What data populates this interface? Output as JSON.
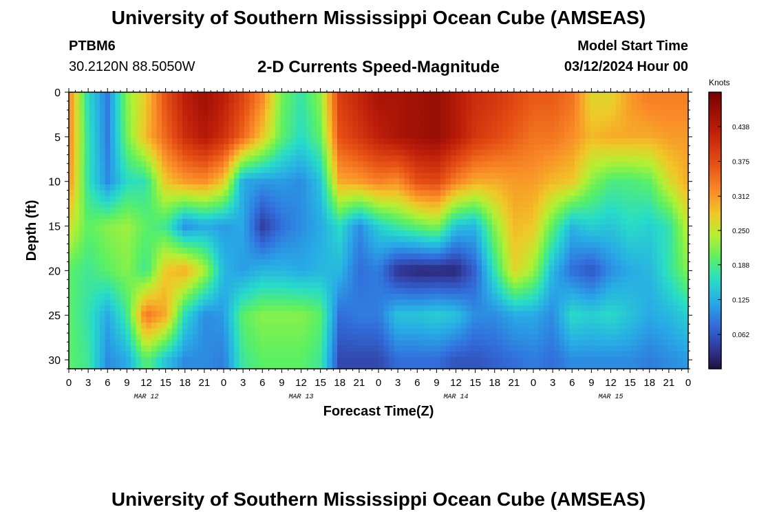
{
  "header": {
    "title": "University of Southern Mississippi Ocean Cube (AMSEAS)",
    "station_id": "PTBM6",
    "coords": "30.2120N  88.5050W",
    "chart_title": "2-D Currents Speed-Magnitude",
    "start_label": "Model Start Time",
    "start_value": "03/12/2024 Hour 00"
  },
  "footer": {
    "title": "University of Southern Mississippi Ocean Cube (AMSEAS)"
  },
  "chart_data": {
    "type": "heatmap",
    "title": "2-D Currents Speed-Magnitude",
    "xlabel": "Forecast Time(Z)",
    "ylabel": "Depth (ft)",
    "x_ticks": [
      "0",
      "3",
      "6",
      "9",
      "12",
      "15",
      "18",
      "21",
      "0",
      "3",
      "6",
      "9",
      "12",
      "15",
      "18",
      "21",
      "0",
      "3",
      "6",
      "9",
      "12",
      "15",
      "18",
      "21",
      "0",
      "3",
      "6",
      "9",
      "12",
      "15",
      "18",
      "21",
      "0"
    ],
    "day_labels": [
      {
        "label": "MAR 12",
        "hour": 12
      },
      {
        "label": "MAR 13",
        "hour": 36
      },
      {
        "label": "MAR 14",
        "hour": 60
      },
      {
        "label": "MAR 15",
        "hour": 84
      }
    ],
    "x_range_hours": [
      0,
      96
    ],
    "y_ticks": [
      0,
      5,
      10,
      15,
      20,
      25,
      30
    ],
    "y_range_ft": [
      0,
      31
    ],
    "colorbar": {
      "unit": "Knots",
      "ticks": [
        "0.062",
        "0.125",
        "0.188",
        "0.250",
        "0.312",
        "0.375",
        "0.438"
      ],
      "range": [
        0,
        0.5
      ]
    },
    "columns": [
      {
        "hour": 0,
        "values": [
          0.33,
          0.33,
          0.32,
          0.26,
          0.2,
          0.2,
          0.2
        ]
      },
      {
        "hour": 3,
        "values": [
          0.16,
          0.17,
          0.17,
          0.2,
          0.18,
          0.17,
          0.18
        ]
      },
      {
        "hour": 6,
        "values": [
          0.09,
          0.09,
          0.1,
          0.22,
          0.2,
          0.12,
          0.1
        ]
      },
      {
        "hour": 9,
        "values": [
          0.22,
          0.21,
          0.16,
          0.23,
          0.22,
          0.18,
          0.12
        ]
      },
      {
        "hour": 12,
        "values": [
          0.28,
          0.29,
          0.17,
          0.2,
          0.18,
          0.34,
          0.2
        ]
      },
      {
        "hour": 15,
        "values": [
          0.37,
          0.35,
          0.28,
          0.18,
          0.28,
          0.3,
          0.14
        ]
      },
      {
        "hour": 18,
        "values": [
          0.43,
          0.41,
          0.31,
          0.1,
          0.3,
          0.16,
          0.1
        ]
      },
      {
        "hour": 21,
        "values": [
          0.46,
          0.44,
          0.32,
          0.12,
          0.24,
          0.1,
          0.1
        ]
      },
      {
        "hour": 24,
        "values": [
          0.43,
          0.41,
          0.28,
          0.11,
          0.13,
          0.11,
          0.09
        ]
      },
      {
        "hour": 27,
        "values": [
          0.38,
          0.35,
          0.12,
          0.12,
          0.11,
          0.2,
          0.18
        ]
      },
      {
        "hour": 30,
        "values": [
          0.32,
          0.28,
          0.11,
          0.04,
          0.13,
          0.22,
          0.2
        ]
      },
      {
        "hour": 33,
        "values": [
          0.21,
          0.2,
          0.11,
          0.08,
          0.13,
          0.22,
          0.2
        ]
      },
      {
        "hour": 36,
        "values": [
          0.17,
          0.16,
          0.1,
          0.1,
          0.12,
          0.22,
          0.2
        ]
      },
      {
        "hour": 39,
        "values": [
          0.22,
          0.2,
          0.14,
          0.12,
          0.13,
          0.2,
          0.18
        ]
      },
      {
        "hour": 42,
        "values": [
          0.39,
          0.37,
          0.3,
          0.16,
          0.13,
          0.08,
          0.05
        ]
      },
      {
        "hour": 45,
        "values": [
          0.42,
          0.4,
          0.31,
          0.1,
          0.08,
          0.09,
          0.05
        ]
      },
      {
        "hour": 48,
        "values": [
          0.45,
          0.43,
          0.33,
          0.15,
          0.09,
          0.09,
          0.05
        ]
      },
      {
        "hour": 51,
        "values": [
          0.45,
          0.45,
          0.32,
          0.18,
          0.03,
          0.14,
          0.08
        ]
      },
      {
        "hour": 54,
        "values": [
          0.46,
          0.46,
          0.37,
          0.2,
          0.02,
          0.14,
          0.08
        ]
      },
      {
        "hour": 57,
        "values": [
          0.47,
          0.47,
          0.38,
          0.22,
          0.02,
          0.15,
          0.08
        ]
      },
      {
        "hour": 60,
        "values": [
          0.44,
          0.44,
          0.33,
          0.14,
          0.02,
          0.14,
          0.06
        ]
      },
      {
        "hour": 63,
        "values": [
          0.41,
          0.4,
          0.3,
          0.13,
          0.07,
          0.1,
          0.06
        ]
      },
      {
        "hour": 66,
        "values": [
          0.4,
          0.38,
          0.3,
          0.22,
          0.17,
          0.1,
          0.07
        ]
      },
      {
        "hour": 69,
        "values": [
          0.38,
          0.36,
          0.31,
          0.29,
          0.27,
          0.12,
          0.08
        ]
      },
      {
        "hour": 72,
        "values": [
          0.36,
          0.34,
          0.31,
          0.28,
          0.23,
          0.12,
          0.09
        ]
      },
      {
        "hour": 75,
        "values": [
          0.36,
          0.34,
          0.29,
          0.2,
          0.13,
          0.1,
          0.08
        ]
      },
      {
        "hour": 78,
        "values": [
          0.34,
          0.32,
          0.28,
          0.13,
          0.08,
          0.16,
          0.1
        ]
      },
      {
        "hour": 81,
        "values": [
          0.27,
          0.29,
          0.22,
          0.15,
          0.06,
          0.15,
          0.1
        ]
      },
      {
        "hour": 84,
        "values": [
          0.27,
          0.3,
          0.19,
          0.14,
          0.1,
          0.16,
          0.1
        ]
      },
      {
        "hour": 87,
        "values": [
          0.31,
          0.3,
          0.19,
          0.16,
          0.12,
          0.14,
          0.1
        ]
      },
      {
        "hour": 90,
        "values": [
          0.33,
          0.3,
          0.2,
          0.15,
          0.13,
          0.12,
          0.09
        ]
      },
      {
        "hour": 93,
        "values": [
          0.33,
          0.31,
          0.26,
          0.17,
          0.17,
          0.13,
          0.1
        ]
      },
      {
        "hour": 96,
        "values": [
          0.33,
          0.31,
          0.3,
          0.25,
          0.22,
          0.15,
          0.11
        ]
      }
    ],
    "depths_ft": [
      1,
      5,
      10,
      15,
      20,
      25,
      30
    ]
  }
}
